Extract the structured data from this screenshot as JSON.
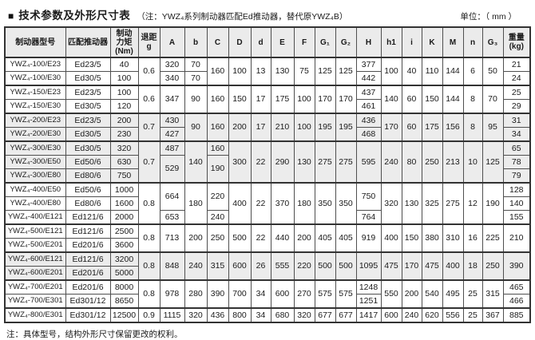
{
  "header": {
    "bullet": "■",
    "title": "技术参数及外形尺寸表",
    "subtitle": "（注：YWZ₄系列制动器匹配Ed推动器，替代原YWZ₄B）",
    "unit": "单位：（ mm ）"
  },
  "table": {
    "headers": [
      "制动器型号",
      "匹配推动器",
      "制动\n力矩\n(Nm)",
      "退距\ng",
      "A",
      "b",
      "C",
      "D",
      "d",
      "E",
      "F",
      "G₁",
      "G₂",
      "H",
      "h1",
      "i",
      "K",
      "M",
      "n",
      "G₃",
      "重量\n(kg)"
    ],
    "groups": [
      {
        "shaded": false,
        "rows": [
          [
            [
              "YWZ₄-100/E23"
            ],
            [
              "Ed23/5"
            ],
            [
              "40"
            ],
            [
              "0.6",
              2
            ],
            [
              "320"
            ],
            [
              "70"
            ],
            [
              "160",
              2
            ],
            [
              "100",
              2
            ],
            [
              "13",
              2
            ],
            [
              "130",
              2
            ],
            [
              "75",
              2
            ],
            [
              "125",
              2
            ],
            [
              "125",
              2
            ],
            [
              "377"
            ],
            [
              "100",
              2
            ],
            [
              "40",
              2
            ],
            [
              "110",
              2
            ],
            [
              "144",
              2
            ],
            [
              "6",
              2
            ],
            [
              "50",
              2
            ],
            [
              "21"
            ]
          ],
          [
            [
              "YWZ₄-100/E30"
            ],
            [
              "Ed30/5"
            ],
            [
              "100"
            ],
            [
              "340"
            ],
            [
              "70"
            ],
            [
              "442"
            ],
            [
              "24"
            ]
          ]
        ]
      },
      {
        "shaded": false,
        "rows": [
          [
            [
              "YWZ₄-150/E23"
            ],
            [
              "Ed23/5"
            ],
            [
              "100"
            ],
            [
              "0.6",
              2
            ],
            [
              "347",
              2
            ],
            [
              "90",
              2
            ],
            [
              "160",
              2
            ],
            [
              "150",
              2
            ],
            [
              "17",
              2
            ],
            [
              "175",
              2
            ],
            [
              "100",
              2
            ],
            [
              "170",
              2
            ],
            [
              "170",
              2
            ],
            [
              "437"
            ],
            [
              "140",
              2
            ],
            [
              "60",
              2
            ],
            [
              "150",
              2
            ],
            [
              "144",
              2
            ],
            [
              "8",
              2
            ],
            [
              "70",
              2
            ],
            [
              "25"
            ]
          ],
          [
            [
              "YWZ₄-150/E30"
            ],
            [
              "Ed30/5"
            ],
            [
              "120"
            ],
            [
              "461"
            ],
            [
              "29"
            ]
          ]
        ]
      },
      {
        "shaded": true,
        "rows": [
          [
            [
              "YWZ₄-200/E23"
            ],
            [
              "Ed23/5"
            ],
            [
              "200"
            ],
            [
              "0.7",
              2
            ],
            [
              "430"
            ],
            [
              "90",
              2
            ],
            [
              "160",
              2
            ],
            [
              "200",
              2
            ],
            [
              "17",
              2
            ],
            [
              "210",
              2
            ],
            [
              "100",
              2
            ],
            [
              "195",
              2
            ],
            [
              "195",
              2
            ],
            [
              "436"
            ],
            [
              "170",
              2
            ],
            [
              "60",
              2
            ],
            [
              "175",
              2
            ],
            [
              "156",
              2
            ],
            [
              "8",
              2
            ],
            [
              "95",
              2
            ],
            [
              "31"
            ]
          ],
          [
            [
              "YWZ₄-200/E30"
            ],
            [
              "Ed30/5"
            ],
            [
              "230"
            ],
            [
              "427"
            ],
            [
              "468"
            ],
            [
              "34"
            ]
          ]
        ]
      },
      {
        "shaded": true,
        "rows": [
          [
            [
              "YWZ₄-300/E30"
            ],
            [
              "Ed30/5"
            ],
            [
              "320"
            ],
            [
              "0.7",
              3
            ],
            [
              "487"
            ],
            [
              "140",
              3
            ],
            [
              "160"
            ],
            [
              "300",
              3
            ],
            [
              "22",
              3
            ],
            [
              "290",
              3
            ],
            [
              "130",
              3
            ],
            [
              "275",
              3
            ],
            [
              "275",
              3
            ],
            [
              "595",
              3
            ],
            [
              "240",
              3
            ],
            [
              "80",
              3
            ],
            [
              "250",
              3
            ],
            [
              "213",
              3
            ],
            [
              "10",
              3
            ],
            [
              "125",
              3
            ],
            [
              "65"
            ]
          ],
          [
            [
              "YWZ₄-300/E50"
            ],
            [
              "Ed50/6"
            ],
            [
              "630"
            ],
            [
              "529",
              2
            ],
            [
              "190",
              2
            ],
            [
              "78"
            ]
          ],
          [
            [
              "YWZ₄-300/E80"
            ],
            [
              "Ed80/6"
            ],
            [
              "750"
            ],
            [
              "79"
            ]
          ]
        ]
      },
      {
        "shaded": false,
        "rows": [
          [
            [
              "YWZ₄-400/E50"
            ],
            [
              "Ed50/6"
            ],
            [
              "1000"
            ],
            [
              "0.8",
              3
            ],
            [
              "664",
              2
            ],
            [
              "180",
              3
            ],
            [
              "220",
              2
            ],
            [
              "400",
              3
            ],
            [
              "22",
              3
            ],
            [
              "370",
              3
            ],
            [
              "180",
              3
            ],
            [
              "350",
              3
            ],
            [
              "350",
              3
            ],
            [
              "750",
              2
            ],
            [
              "320",
              3
            ],
            [
              "130",
              3
            ],
            [
              "325",
              3
            ],
            [
              "275",
              3
            ],
            [
              "12",
              3
            ],
            [
              "190",
              3
            ],
            [
              "128"
            ]
          ],
          [
            [
              "YWZ₄-400/E80"
            ],
            [
              "Ed80/6"
            ],
            [
              "1600"
            ],
            [
              "140"
            ]
          ],
          [
            [
              "YWZ₄-400/E121"
            ],
            [
              "Ed121/6"
            ],
            [
              "2000"
            ],
            [
              "653"
            ],
            [
              "240"
            ],
            [
              "764"
            ],
            [
              "155"
            ]
          ]
        ]
      },
      {
        "shaded": false,
        "rows": [
          [
            [
              "YWZ₄-500/E121"
            ],
            [
              "Ed121/6"
            ],
            [
              "2500"
            ],
            [
              "0.8",
              2
            ],
            [
              "713",
              2
            ],
            [
              "200",
              2
            ],
            [
              "250",
              2
            ],
            [
              "500",
              2
            ],
            [
              "22",
              2
            ],
            [
              "440",
              2
            ],
            [
              "200",
              2
            ],
            [
              "405",
              2
            ],
            [
              "405",
              2
            ],
            [
              "919",
              2
            ],
            [
              "400",
              2
            ],
            [
              "150",
              2
            ],
            [
              "380",
              2
            ],
            [
              "310",
              2
            ],
            [
              "16",
              2
            ],
            [
              "225",
              2
            ],
            [
              "210",
              2
            ]
          ],
          [
            [
              "YWZ₄-500/E201"
            ],
            [
              "Ed201/6"
            ],
            [
              "3600"
            ]
          ]
        ]
      },
      {
        "shaded": true,
        "rows": [
          [
            [
              "YWZ₄-600/E121"
            ],
            [
              "Ed121/6"
            ],
            [
              "3200"
            ],
            [
              "0.8",
              2
            ],
            [
              "848",
              2
            ],
            [
              "240",
              2
            ],
            [
              "315",
              2
            ],
            [
              "600",
              2
            ],
            [
              "26",
              2
            ],
            [
              "555",
              2
            ],
            [
              "220",
              2
            ],
            [
              "500",
              2
            ],
            [
              "500",
              2
            ],
            [
              "1095",
              2
            ],
            [
              "475",
              2
            ],
            [
              "170",
              2
            ],
            [
              "475",
              2
            ],
            [
              "400",
              2
            ],
            [
              "18",
              2
            ],
            [
              "250",
              2
            ],
            [
              "390",
              2
            ]
          ],
          [
            [
              "YWZ₄-600/E201"
            ],
            [
              "Ed201/6"
            ],
            [
              "5000"
            ]
          ]
        ]
      },
      {
        "shaded": false,
        "rows": [
          [
            [
              "YWZ₄-700/E201"
            ],
            [
              "Ed201/6"
            ],
            [
              "8000"
            ],
            [
              "0.8",
              2
            ],
            [
              "978",
              2
            ],
            [
              "280",
              2
            ],
            [
              "390",
              2
            ],
            [
              "700",
              2
            ],
            [
              "34",
              2
            ],
            [
              "600",
              2
            ],
            [
              "270",
              2
            ],
            [
              "575",
              2
            ],
            [
              "575",
              2
            ],
            [
              "1248"
            ],
            [
              "550",
              2
            ],
            [
              "200",
              2
            ],
            [
              "540",
              2
            ],
            [
              "495",
              2
            ],
            [
              "25",
              2
            ],
            [
              "315",
              2
            ],
            [
              "465"
            ]
          ],
          [
            [
              "YWZ₄-700/E301"
            ],
            [
              "Ed301/12"
            ],
            [
              "8650"
            ],
            [
              "1251"
            ],
            [
              "466"
            ]
          ]
        ]
      },
      {
        "shaded": false,
        "rows": [
          [
            [
              "YWZ₄-800/E301"
            ],
            [
              "Ed301/12"
            ],
            [
              "12500"
            ],
            [
              "0.9"
            ],
            [
              "1115"
            ],
            [
              "320"
            ],
            [
              "436"
            ],
            [
              "800"
            ],
            [
              "34"
            ],
            [
              "680"
            ],
            [
              "320"
            ],
            [
              "677"
            ],
            [
              "677"
            ],
            [
              "1417"
            ],
            [
              "600"
            ],
            [
              "240"
            ],
            [
              "620"
            ],
            [
              "556"
            ],
            [
              "25"
            ],
            [
              "367"
            ],
            [
              "885"
            ]
          ]
        ]
      }
    ]
  },
  "footnote": "注：具体型号，结构外形尺寸保留更改的权利。"
}
